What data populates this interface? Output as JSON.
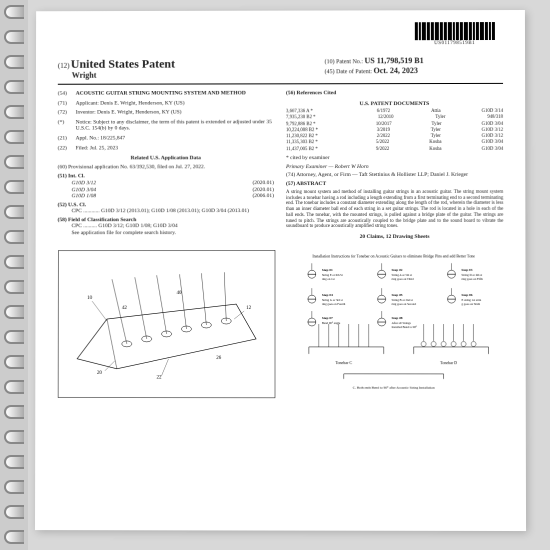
{
  "barcode_text": "US011798519B1",
  "header": {
    "prefix": "(12)",
    "title": "United States Patent",
    "inventor": "Wright",
    "patent_no_label": "(10) Patent No.:",
    "patent_no": "US 11,798,519 B1",
    "date_label": "(45) Date of Patent:",
    "date": "Oct. 24, 2023"
  },
  "left_fields": [
    {
      "n": "(54)",
      "label": "",
      "body": "ACOUSTIC GUITAR STRING MOUNTING SYSTEM AND METHOD",
      "bold": true
    },
    {
      "n": "(71)",
      "label": "Applicant:",
      "body": "Denis E. Wright, Henderson, KY (US)"
    },
    {
      "n": "(72)",
      "label": "Inventor:",
      "body": "Denis E. Wright, Henderson, KY (US)"
    },
    {
      "n": "(*)",
      "label": "Notice:",
      "body": "Subject to any disclaimer, the term of this patent is extended or adjusted under 35 U.S.C. 154(b) by 0 days."
    },
    {
      "n": "(21)",
      "label": "Appl. No.:",
      "body": "18/225,847"
    },
    {
      "n": "(22)",
      "label": "Filed:",
      "body": "Jul. 25, 2023"
    }
  ],
  "related_title": "Related U.S. Application Data",
  "related_body": "(60)  Provisional application No. 63/392,530, filed on Jul. 27, 2022.",
  "int_cl": {
    "label": "(51)  Int. Cl.",
    "rows": [
      {
        "c": "G10D 3/12",
        "y": "(2020.01)"
      },
      {
        "c": "G10D 3/04",
        "y": "(2020.01)"
      },
      {
        "c": "G10D 1/08",
        "y": "(2006.01)"
      }
    ]
  },
  "us_cl": {
    "label": "(52)  U.S. Cl.",
    "body": "CPC ............ G10D 3/12 (2013.01); G10D 1/08 (2013.01); G10D 3/04 (2013.01)"
  },
  "search": {
    "label": "(58)  Field of Classification Search",
    "body": "CPC .......... G10D 3/12; G10D 1/08; G10D 3/04\nSee application file for complete search history."
  },
  "refs_title": "(56)                    References Cited",
  "refs_sub": "U.S. PATENT DOCUMENTS",
  "refs": [
    {
      "a": "3,667,336 A *",
      "b": "6/1972",
      "c": "Attia",
      "d": "G10D 3/14"
    },
    {
      "a": "7,935,230 B2 *",
      "b": "12/2010",
      "c": "Tyler",
      "d": "948/318"
    },
    {
      "a": "9,792,886 B2 *",
      "b": "10/2017",
      "c": "Tyler",
      "d": "G10D 3/04"
    },
    {
      "a": "10,224,008 B2 *",
      "b": "3/2019",
      "c": "Tyler",
      "d": "G10D 3/12"
    },
    {
      "a": "11,230,822 B2 *",
      "b": "2/2022",
      "c": "Tyler",
      "d": "G10D 3/12"
    },
    {
      "a": "11,335,303 B2 *",
      "b": "5/2022",
      "c": "Kosba",
      "d": "G10D 3/04"
    },
    {
      "a": "11,437,005 B2 *",
      "b": "9/2022",
      "c": "Kosba",
      "d": "G10D 3/04"
    }
  ],
  "cited_by": "* cited by examiner",
  "examiner": "Primary Examiner — Robert W Horn",
  "attorney": "(74) Attorney, Agent, or Firm — Taft Stettinius & Hollister LLP; Daniel J. Krieger",
  "abstract_label": "(57)                    ABSTRACT",
  "abstract": "A string mount system and method of installing guitar strings in an acoustic guitar. The string mount system includes a tonebar having a rod including a length extending from a first terminating end to a second terminating end. The tonebar includes a constant diameter extending along the length of the rod, wherein the diameter is less than an inner diameter ball end of each string in a set guitar strings. The rod is located in a hole in each of the ball ends. The tonebar, with the mounted strings, is pulled against a bridge plate of the guitar. The strings are tuned to pitch. The strings are acoustically coupled to the bridge plate and to the sound board to vibrate the soundboard to produce acoustically amplified string tones.",
  "claims": "20 Claims, 12 Drawing Sheets",
  "instr_title": "Installation Instructions for Tonebar on Acoustic Guitars to eliminate Bridge Pins and add Better Tone",
  "steps": [
    {
      "t": "Step #1",
      "d": "String E or 6th String on 1st"
    },
    {
      "t": "Step #2",
      "d": "String A or 5th string goes on Third"
    },
    {
      "t": "Step #3",
      "d": "String D or 4th string goes on Fifth"
    },
    {
      "t": "Step #4",
      "d": "String G or 3rd string goes on Fourth"
    },
    {
      "t": "Step #5",
      "d": "String B or 2nd string goes on Second"
    },
    {
      "t": "Step #6",
      "d": "E string 1st string goes on Sixth"
    },
    {
      "t": "Step #7",
      "d": "Bend 90° angle"
    },
    {
      "t": "Step #8",
      "d": "After all Strings Installed Bend to 90°"
    }
  ],
  "tonebar_labels": [
    "Tonebar C",
    "Tonebar D"
  ],
  "footer_note": "C. Both ends Bend to 90° after Acoustic String Installation"
}
